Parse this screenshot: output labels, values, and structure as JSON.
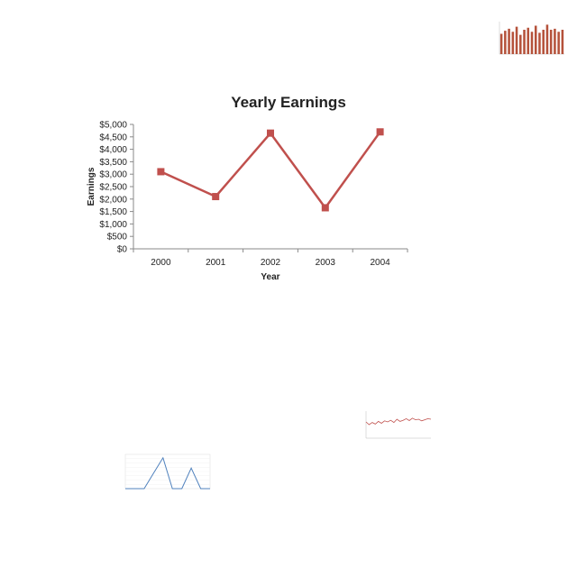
{
  "chart_data": [
    {
      "type": "line",
      "title": "Yearly Earnings",
      "xlabel": "Year",
      "ylabel": "Earnings",
      "categories": [
        "2000",
        "2001",
        "2002",
        "2003",
        "2004"
      ],
      "series": [
        {
          "values": [
            3100,
            2100,
            4650,
            1650,
            4700
          ],
          "color": "#c0504d"
        }
      ],
      "ylim": [
        0,
        5000
      ],
      "yticks": [
        "$0",
        "$500",
        "$1,000",
        "$1,500",
        "$2,000",
        "$2,500",
        "$3,000",
        "$3,500",
        "$4,000",
        "$4,500",
        "$5,000"
      ],
      "grid": false
    },
    {
      "type": "bar",
      "values": [
        20,
        23,
        25,
        22,
        27,
        19,
        24,
        26,
        22,
        28,
        21,
        24,
        29,
        24,
        25,
        22,
        24
      ],
      "color": "#b5523b"
    },
    {
      "type": "line",
      "values": [
        60,
        50,
        58,
        52,
        62,
        55,
        64,
        60,
        66,
        58,
        70,
        62,
        66,
        72,
        65,
        74,
        68,
        70,
        64,
        68,
        72,
        70
      ],
      "color": "#c0504d"
    },
    {
      "type": "line",
      "values": [
        0,
        0,
        0,
        45,
        90,
        0,
        0,
        60,
        0,
        0
      ],
      "color": "#4f81bd"
    }
  ]
}
